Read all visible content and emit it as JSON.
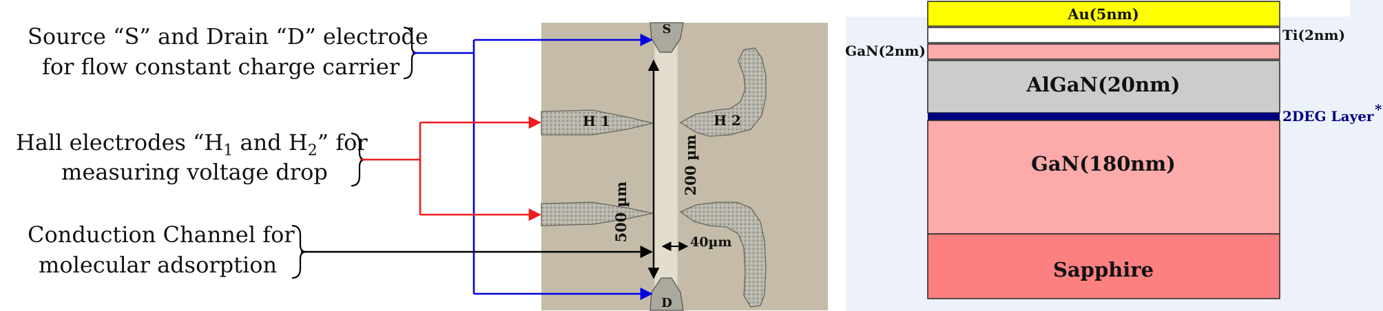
{
  "labels": {
    "source_drain_line1": "Source “S” and Drain “D” electrode",
    "source_drain_line2": "for flow constant charge carrier",
    "hall_line1_pre": "Hall electrodes “H",
    "hall_sub1": "1",
    "hall_line1_mid": " and H",
    "hall_sub2": "2",
    "hall_line1_post": "” for",
    "hall_line2": "measuring voltage drop",
    "channel_line1": "Conduction Channel for",
    "channel_line2": "molecular adsorption"
  },
  "micrograph": {
    "s_label": "S",
    "d_label": "D",
    "h1_label": "H 1",
    "h2_label": "H 2",
    "length_500": "500 µm",
    "length_200": "200 µm",
    "width_40": "40µm"
  },
  "layers": {
    "au": "Au(5nm)",
    "ti": "Ti(2nm)",
    "gan_cap": "GaN(2nm)",
    "algan": "AlGaN(20nm)",
    "twodeg": "2DEG Layer",
    "twodeg_star": "*",
    "gan": "GaN(180nm)",
    "sapphire": "Sapphire"
  },
  "colors": {
    "blue_arrow": "#0000e0",
    "red_arrow": "#ee1c1c",
    "black_arrow": "#000000",
    "au": "#ffff00",
    "ti": "#ffffff",
    "gan_cap": "#fcaaaa",
    "algan": "#cccccc",
    "twodeg": "#000080",
    "gan": "#fcaaaa",
    "sapphire": "#fd8080",
    "stack_bg": "#edf2fa",
    "micro_bg": "#c4bca9"
  }
}
